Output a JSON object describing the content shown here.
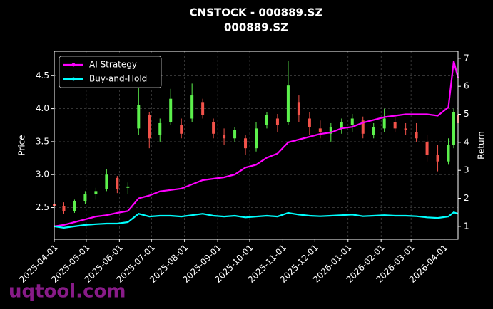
{
  "chart_data": {
    "type": "candlestick",
    "title": "CNSTOCK - 000889.SZ",
    "subtitle": "000889.SZ",
    "ylabel": "Price",
    "y2label": "Return",
    "watermark": "uqtool.com",
    "grid": true,
    "legend": "upper left",
    "up_color": "#5cf04c",
    "down_color": "#f2524a",
    "x": [
      "2025-04-01",
      "2025-04-10",
      "2025-04-20",
      "2025-04-30",
      "2025-05-10",
      "2025-05-20",
      "2025-05-30",
      "2025-06-09",
      "2025-06-19",
      "2025-06-29",
      "2025-07-09",
      "2025-07-19",
      "2025-07-29",
      "2025-08-08",
      "2025-08-18",
      "2025-08-28",
      "2025-09-07",
      "2025-09-17",
      "2025-09-27",
      "2025-10-07",
      "2025-10-17",
      "2025-10-27",
      "2025-11-06",
      "2025-11-16",
      "2025-11-26",
      "2025-12-06",
      "2025-12-16",
      "2025-12-26",
      "2026-01-05",
      "2026-01-15",
      "2026-01-25",
      "2026-02-04",
      "2026-02-14",
      "2026-02-24",
      "2026-03-06",
      "2026-03-16",
      "2026-03-26",
      "2026-04-05",
      "2026-04-10",
      "2026-04-14"
    ],
    "open": [
      2.55,
      2.52,
      2.45,
      2.6,
      2.7,
      2.78,
      2.95,
      2.8,
      3.7,
      3.9,
      3.6,
      3.8,
      3.75,
      3.85,
      4.1,
      3.8,
      3.6,
      3.55,
      3.55,
      3.4,
      3.75,
      3.85,
      3.8,
      4.1,
      3.85,
      3.7,
      3.62,
      3.7,
      3.75,
      3.82,
      3.6,
      3.7,
      3.8,
      3.7,
      3.65,
      3.5,
      3.3,
      3.2,
      3.45,
      3.9
    ],
    "high": [
      2.62,
      2.58,
      2.62,
      2.75,
      2.8,
      3.08,
      2.98,
      2.88,
      4.4,
      3.95,
      3.85,
      4.3,
      3.85,
      4.38,
      4.15,
      3.85,
      3.7,
      3.72,
      3.6,
      3.8,
      3.95,
      3.92,
      4.72,
      4.2,
      3.95,
      3.82,
      3.78,
      3.85,
      3.92,
      3.88,
      3.78,
      4.0,
      3.88,
      3.78,
      3.78,
      3.6,
      3.45,
      3.55,
      4.0,
      4.05
    ],
    "low": [
      2.48,
      2.4,
      2.42,
      2.55,
      2.62,
      2.75,
      2.72,
      2.7,
      3.6,
      3.4,
      3.5,
      3.75,
      3.55,
      3.8,
      3.85,
      3.55,
      3.45,
      3.5,
      3.3,
      3.35,
      3.7,
      3.65,
      3.75,
      3.8,
      3.6,
      3.55,
      3.5,
      3.62,
      3.65,
      3.55,
      3.55,
      3.65,
      3.65,
      3.6,
      3.5,
      3.2,
      3.05,
      3.15,
      3.4,
      3.7
    ],
    "close": [
      2.52,
      2.45,
      2.6,
      2.7,
      2.75,
      3.0,
      2.78,
      2.82,
      4.05,
      3.55,
      3.78,
      4.15,
      3.62,
      4.2,
      3.9,
      3.62,
      3.55,
      3.68,
      3.4,
      3.7,
      3.9,
      3.75,
      4.35,
      3.9,
      3.72,
      3.65,
      3.72,
      3.8,
      3.85,
      3.62,
      3.72,
      3.85,
      3.7,
      3.68,
      3.55,
      3.3,
      3.2,
      3.45,
      3.95,
      3.78
    ],
    "series": [
      {
        "name": "AI Strategy",
        "color": "#ff00ff",
        "axis": "y2",
        "values": [
          1.0,
          1.05,
          1.15,
          1.25,
          1.35,
          1.4,
          1.48,
          1.55,
          2.0,
          2.1,
          2.25,
          2.3,
          2.35,
          2.5,
          2.65,
          2.7,
          2.75,
          2.85,
          3.1,
          3.2,
          3.45,
          3.6,
          4.0,
          4.1,
          4.2,
          4.3,
          4.35,
          4.5,
          4.55,
          4.7,
          4.8,
          4.9,
          4.95,
          5.0,
          5.0,
          5.0,
          4.95,
          5.25,
          6.9,
          6.3
        ]
      },
      {
        "name": "Buy-and-Hold",
        "color": "#00ffff",
        "axis": "y2",
        "values": [
          1.0,
          0.95,
          1.0,
          1.05,
          1.08,
          1.1,
          1.1,
          1.15,
          1.45,
          1.35,
          1.38,
          1.38,
          1.35,
          1.4,
          1.45,
          1.38,
          1.35,
          1.38,
          1.32,
          1.35,
          1.38,
          1.35,
          1.48,
          1.42,
          1.38,
          1.36,
          1.38,
          1.4,
          1.42,
          1.36,
          1.38,
          1.4,
          1.38,
          1.38,
          1.36,
          1.32,
          1.3,
          1.35,
          1.5,
          1.45
        ]
      }
    ],
    "xlim": [
      "2025-04-01",
      "2026-04-14"
    ],
    "xticks": [
      "2025-04-01",
      "2025-05-01",
      "2025-06-01",
      "2025-07-01",
      "2025-08-01",
      "2025-09-01",
      "2025-10-01",
      "2025-11-01",
      "2025-12-01",
      "2026-01-01",
      "2026-02-01",
      "2026-03-01",
      "2026-04-01"
    ],
    "ylim": [
      2.02,
      4.87
    ],
    "yticks": [
      2.5,
      {
        "value": 3,
        "label": "3.0"
      },
      3.5,
      {
        "value": 4,
        "label": "4.0"
      },
      4.5
    ],
    "y2lim": [
      0.54,
      7.25
    ],
    "y2ticks": [
      1,
      2,
      3,
      4,
      5,
      6,
      7
    ]
  }
}
